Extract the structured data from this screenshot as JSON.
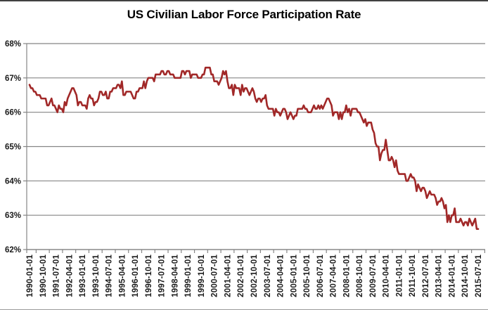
{
  "chart_data": {
    "type": "line",
    "title": "US Civilian Labor Force Participation Rate",
    "series_name": "US Civilian Labor Force Participation Rate",
    "unit": "%",
    "frequency": "monthly",
    "x_start": "1990-01-01",
    "x_end": "2015-07-01",
    "ylim": [
      62,
      68
    ],
    "grid": "horizontal-only",
    "legend": "none",
    "line_color": "#A12828",
    "grid_color": "#858585",
    "axis_color": "#858585",
    "tick_text_color": "#1a1a1a",
    "y_ticks": [
      "68%",
      "67%",
      "66%",
      "65%",
      "64%",
      "63%",
      "62%"
    ],
    "x_tick_labels": [
      "1990-01-01",
      "1990-10-01",
      "1991-07-01",
      "1992-04-01",
      "1993-01-01",
      "1993-10-01",
      "1994-07-01",
      "1995-04-01",
      "1996-01-01",
      "1996-10-01",
      "1997-07-01",
      "1998-04-01",
      "1999-01-01",
      "1999-10-01",
      "2000-07-01",
      "2001-04-01",
      "2002-01-01",
      "2002-10-01",
      "2003-07-01",
      "2004-04-01",
      "2005-01-01",
      "2005-10-01",
      "2006-07-01",
      "2007-04-01",
      "2008-01-01",
      "2008-10-01",
      "2009-07-01",
      "2010-04-01",
      "2011-01-01",
      "2011-10-01",
      "2012-07-01",
      "2013-04-01",
      "2014-01-01",
      "2014-10-01",
      "2015-07-01"
    ],
    "values": [
      66.8,
      66.7,
      66.7,
      66.6,
      66.6,
      66.5,
      66.5,
      66.5,
      66.4,
      66.4,
      66.4,
      66.4,
      66.2,
      66.2,
      66.3,
      66.4,
      66.2,
      66.2,
      66.1,
      66.0,
      66.2,
      66.1,
      66.1,
      66.0,
      66.3,
      66.2,
      66.4,
      66.5,
      66.6,
      66.7,
      66.7,
      66.6,
      66.5,
      66.2,
      66.3,
      66.3,
      66.2,
      66.2,
      66.2,
      66.1,
      66.4,
      66.5,
      66.4,
      66.4,
      66.2,
      66.3,
      66.3,
      66.4,
      66.6,
      66.6,
      66.5,
      66.5,
      66.6,
      66.4,
      66.4,
      66.6,
      66.6,
      66.7,
      66.7,
      66.7,
      66.8,
      66.8,
      66.7,
      66.9,
      66.5,
      66.5,
      66.6,
      66.6,
      66.6,
      66.6,
      66.5,
      66.4,
      66.4,
      66.6,
      66.6,
      66.7,
      66.7,
      66.7,
      66.9,
      66.7,
      66.9,
      67.0,
      67.0,
      67.0,
      67.0,
      66.9,
      67.1,
      67.1,
      67.1,
      67.1,
      67.2,
      67.2,
      67.1,
      67.1,
      67.2,
      67.2,
      67.1,
      67.1,
      67.1,
      67.0,
      67.0,
      67.0,
      67.0,
      67.0,
      67.2,
      67.2,
      67.1,
      67.2,
      67.2,
      67.2,
      67.0,
      67.1,
      67.1,
      67.1,
      67.1,
      67.0,
      67.0,
      67.0,
      67.1,
      67.1,
      67.3,
      67.3,
      67.3,
      67.3,
      67.1,
      67.1,
      66.9,
      66.9,
      66.9,
      66.8,
      66.9,
      67.0,
      67.2,
      67.1,
      67.2,
      66.9,
      66.7,
      66.7,
      66.8,
      66.5,
      66.8,
      66.7,
      66.7,
      66.7,
      66.5,
      66.8,
      66.6,
      66.7,
      66.7,
      66.6,
      66.5,
      66.6,
      66.7,
      66.6,
      66.4,
      66.3,
      66.4,
      66.4,
      66.3,
      66.4,
      66.4,
      66.5,
      66.2,
      66.1,
      66.1,
      66.1,
      66.1,
      65.9,
      66.1,
      66.0,
      66.0,
      65.9,
      66.0,
      66.1,
      66.1,
      66.0,
      65.8,
      65.9,
      66.0,
      65.9,
      65.8,
      65.9,
      65.9,
      66.1,
      66.1,
      66.1,
      66.1,
      66.2,
      66.1,
      66.1,
      66.0,
      66.0,
      66.0,
      66.1,
      66.2,
      66.1,
      66.1,
      66.2,
      66.1,
      66.2,
      66.1,
      66.2,
      66.3,
      66.4,
      66.4,
      66.3,
      66.2,
      65.9,
      66.0,
      66.0,
      66.0,
      65.8,
      66.0,
      65.8,
      66.0,
      66.0,
      66.2,
      66.0,
      66.1,
      65.9,
      66.1,
      66.1,
      66.1,
      66.1,
      66.0,
      66.0,
      65.9,
      65.8,
      65.7,
      65.8,
      65.6,
      65.7,
      65.7,
      65.7,
      65.5,
      65.4,
      65.1,
      65.0,
      65.0,
      64.6,
      64.8,
      64.9,
      64.9,
      65.2,
      64.9,
      64.6,
      64.6,
      64.7,
      64.6,
      64.4,
      64.6,
      64.3,
      64.2,
      64.2,
      64.2,
      64.2,
      64.2,
      64.0,
      64.0,
      64.1,
      64.2,
      64.1,
      64.1,
      64.0,
      63.7,
      63.9,
      63.8,
      63.7,
      63.8,
      63.8,
      63.7,
      63.5,
      63.6,
      63.7,
      63.6,
      63.6,
      63.6,
      63.5,
      63.3,
      63.4,
      63.4,
      63.5,
      63.4,
      63.2,
      63.3,
      62.8,
      63.0,
      62.8,
      63.0,
      63.0,
      63.2,
      62.8,
      62.8,
      62.8,
      62.9,
      62.8,
      62.7,
      62.8,
      62.8,
      62.7,
      62.9,
      62.8,
      62.7,
      62.8,
      62.9,
      62.6,
      62.6
    ]
  }
}
